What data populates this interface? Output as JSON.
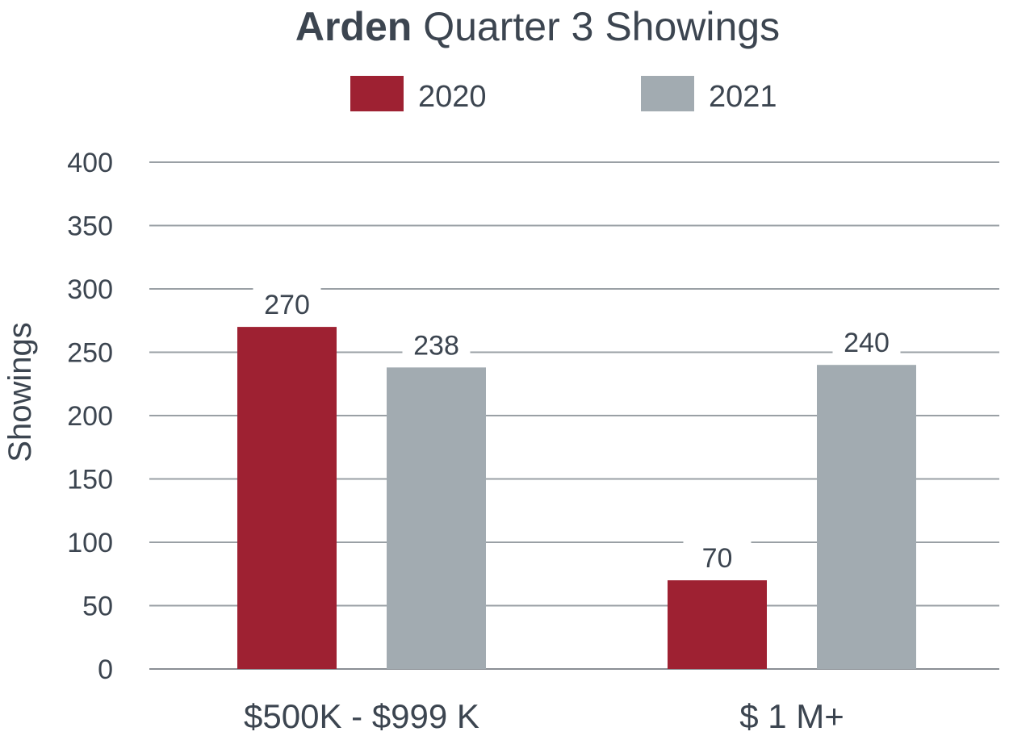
{
  "chart_data": {
    "type": "bar",
    "title_bold": "Arden",
    "title_rest": " Quarter 3 Showings",
    "ylabel": "Showings",
    "categories": [
      "$500K - $999 K",
      "$ 1 M+"
    ],
    "series": [
      {
        "name": "2020",
        "color": "#9e2132",
        "values": [
          270,
          70
        ],
        "labels": [
          "270",
          "70"
        ]
      },
      {
        "name": "2021",
        "color": "#a2abb1",
        "values": [
          238,
          240
        ],
        "labels": [
          "238",
          "240"
        ]
      }
    ],
    "ylim": [
      0,
      400
    ],
    "yticks": [
      "0",
      "50",
      "100",
      "150",
      "200",
      "250",
      "300",
      "350",
      "400"
    ],
    "grid": true,
    "legend_position": "top-center"
  }
}
